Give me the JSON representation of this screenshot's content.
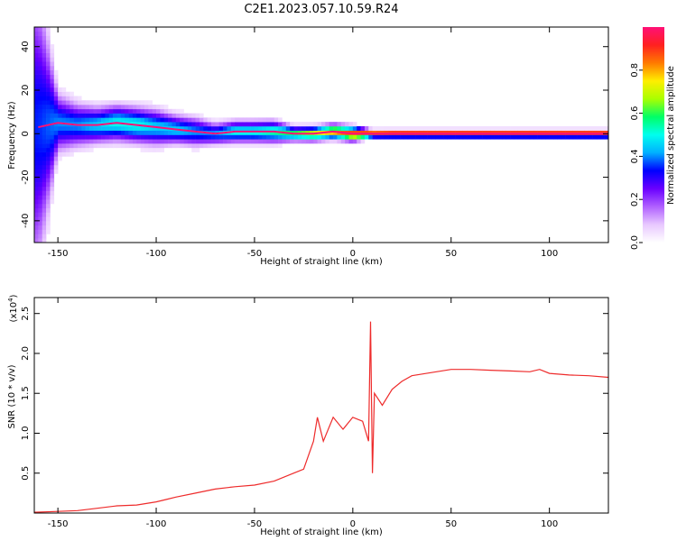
{
  "title": "C2E1.2023.057.10.59.R24",
  "colors": {
    "signal_line": "#ee2b2b",
    "colormap": [
      "#ffffff",
      "#e8c8ff",
      "#b060ff",
      "#6a00ff",
      "#0000ff",
      "#00b0ff",
      "#00ffee",
      "#00ff66",
      "#aaff00",
      "#ffee00",
      "#ff7a00",
      "#ff2020",
      "#ff1077"
    ]
  },
  "chart_data": [
    {
      "type": "heatmap",
      "xlabel": "Height of straight line (km)",
      "ylabel": "Frequency (Hz)",
      "xlim": [
        -162,
        130
      ],
      "ylim": [
        -50,
        49
      ],
      "xticks": [
        -150,
        -100,
        -50,
        0,
        50,
        100
      ],
      "yticks": [
        -40,
        -20,
        0,
        20,
        40
      ],
      "colorbar": {
        "label": "Normalized spectral amplitude",
        "range": [
          0.0,
          1.0
        ],
        "ticks": [
          0.0,
          0.2,
          0.4,
          0.6,
          0.8
        ]
      },
      "ridge": {
        "x": [
          -160,
          -150,
          -140,
          -130,
          -120,
          -110,
          -100,
          -90,
          -80,
          -70,
          -60,
          -50,
          -40,
          -30,
          -20,
          -10,
          0,
          10,
          20,
          50,
          100,
          130
        ],
        "freq": [
          3,
          5,
          4,
          4,
          5,
          4,
          3,
          2,
          1,
          0,
          1,
          1,
          1,
          0,
          0,
          1,
          0,
          0,
          0,
          0,
          0,
          0
        ],
        "amplitude": [
          0.35,
          0.4,
          0.4,
          0.45,
          0.5,
          0.5,
          0.45,
          0.45,
          0.4,
          0.4,
          0.5,
          0.5,
          0.55,
          0.6,
          0.7,
          0.8,
          0.9,
          0.95,
          1.0,
          1.0,
          1.0,
          1.0
        ],
        "spread_hz": [
          40,
          8,
          6,
          5,
          5,
          5,
          5,
          4,
          4,
          3,
          3,
          3,
          3,
          2,
          2,
          2,
          2,
          1,
          1,
          1,
          1,
          1
        ]
      }
    },
    {
      "type": "line",
      "xlabel": "Height of straight line (km)",
      "ylabel": "SNR (10 * v/v)",
      "yscale_label": "(x10",
      "yscale_exp": "4",
      "yscale_close": ")",
      "xlim": [
        -162,
        130
      ],
      "ylim": [
        0,
        2.7
      ],
      "xticks": [
        -150,
        -100,
        -50,
        0,
        50,
        100
      ],
      "yticks": [
        0.5,
        1.0,
        1.5,
        2.0,
        2.5
      ],
      "series": [
        {
          "x": [
            -162,
            -150,
            -140,
            -130,
            -120,
            -110,
            -100,
            -95,
            -90,
            -80,
            -70,
            -60,
            -50,
            -40,
            -30,
            -25,
            -20,
            -18,
            -15,
            -10,
            -5,
            0,
            5,
            8,
            9,
            10,
            11,
            15,
            20,
            25,
            30,
            40,
            50,
            60,
            70,
            80,
            90,
            95,
            100,
            110,
            120,
            130
          ],
          "y": [
            0.01,
            0.02,
            0.03,
            0.06,
            0.09,
            0.1,
            0.14,
            0.17,
            0.2,
            0.25,
            0.3,
            0.33,
            0.35,
            0.4,
            0.5,
            0.55,
            0.9,
            1.2,
            0.9,
            1.2,
            1.05,
            1.2,
            1.15,
            0.9,
            2.4,
            0.5,
            1.5,
            1.35,
            1.55,
            1.65,
            1.72,
            1.76,
            1.8,
            1.8,
            1.79,
            1.78,
            1.77,
            1.8,
            1.75,
            1.73,
            1.72,
            1.7
          ]
        }
      ]
    }
  ]
}
